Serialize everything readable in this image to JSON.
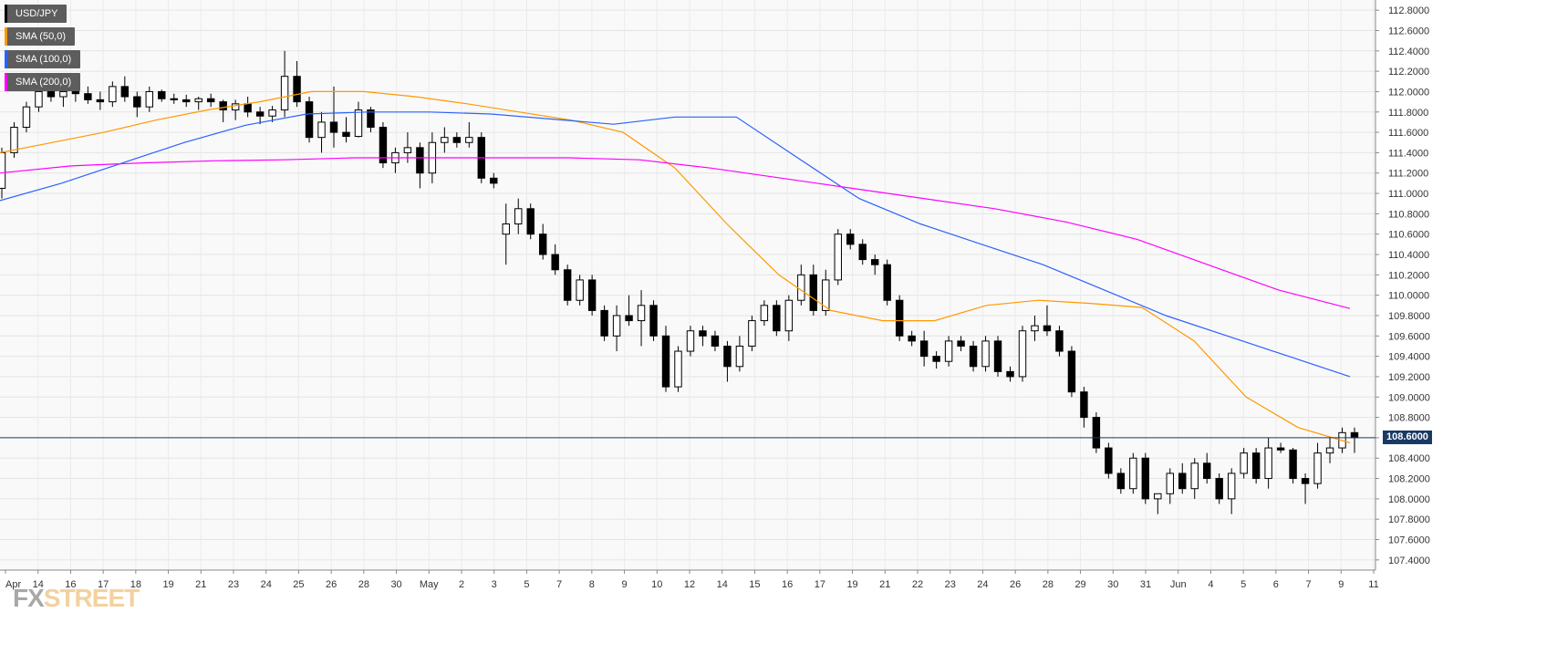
{
  "legend": [
    {
      "label": "USD/JPY",
      "color": "#000000"
    },
    {
      "label": "SMA (50,0)",
      "color": "#ff9900"
    },
    {
      "label": "SMA (100,0)",
      "color": "#2962ff"
    },
    {
      "label": "SMA (200,0)",
      "color": "#ff00ff"
    }
  ],
  "watermark": {
    "left": "FX",
    "right": "STREET"
  },
  "current_price": "108.6000",
  "chart_data": {
    "type": "candlestick",
    "symbol": "USD/JPY",
    "ylim": [
      107.3,
      112.9
    ],
    "y_ticks": [
      "112.8000",
      "112.6000",
      "112.4000",
      "112.2000",
      "112.0000",
      "111.8000",
      "111.6000",
      "111.4000",
      "111.2000",
      "111.0000",
      "110.8000",
      "110.6000",
      "110.4000",
      "110.2000",
      "110.0000",
      "109.8000",
      "109.6000",
      "109.4000",
      "109.2000",
      "109.0000",
      "108.8000",
      "108.6000",
      "108.4000",
      "108.2000",
      "108.0000",
      "107.8000",
      "107.6000",
      "107.4000"
    ],
    "x_ticks": [
      "Apr",
      "14",
      "16",
      "17",
      "18",
      "19",
      "21",
      "23",
      "24",
      "25",
      "26",
      "28",
      "30",
      "May",
      "2",
      "3",
      "5",
      "7",
      "8",
      "9",
      "10",
      "12",
      "14",
      "15",
      "16",
      "17",
      "19",
      "21",
      "22",
      "23",
      "24",
      "26",
      "28",
      "29",
      "30",
      "31",
      "Jun",
      "4",
      "5",
      "6",
      "7",
      "9",
      "11"
    ],
    "current_price": 108.6,
    "series": [
      {
        "name": "SMA (50,0)",
        "color": "#ff9900",
        "values": [
          111.4,
          111.5,
          111.6,
          111.72,
          111.82,
          111.9,
          112.0,
          112.0,
          111.95,
          111.88,
          111.8,
          111.72,
          111.6,
          111.25,
          110.7,
          110.2,
          109.85,
          109.75,
          109.75,
          109.9,
          109.95,
          109.92,
          109.88,
          109.55,
          109.0,
          108.7,
          108.55
        ]
      },
      {
        "name": "SMA (100,0)",
        "color": "#2962ff",
        "values": [
          110.93,
          111.1,
          111.3,
          111.5,
          111.67,
          111.78,
          111.8,
          111.8,
          111.78,
          111.73,
          111.68,
          111.75,
          111.75,
          111.35,
          110.95,
          110.7,
          110.5,
          110.3,
          110.05,
          109.8,
          109.6,
          109.4,
          109.2
        ]
      },
      {
        "name": "SMA (200,0)",
        "color": "#ff00ff",
        "values": [
          111.2,
          111.27,
          111.3,
          111.32,
          111.33,
          111.35,
          111.35,
          111.35,
          111.35,
          111.33,
          111.25,
          111.15,
          111.05,
          110.95,
          110.85,
          110.72,
          110.55,
          110.3,
          110.05,
          109.87
        ]
      }
    ],
    "candles": [
      [
        111.05,
        111.45,
        110.95,
        111.4
      ],
      [
        111.4,
        111.7,
        111.35,
        111.65
      ],
      [
        111.65,
        111.9,
        111.6,
        111.85
      ],
      [
        111.85,
        112.1,
        111.8,
        112.0
      ],
      [
        112.0,
        112.12,
        111.9,
        111.95
      ],
      [
        111.95,
        112.05,
        111.85,
        112.0
      ],
      [
        112.0,
        112.1,
        111.9,
        111.98
      ],
      [
        111.98,
        112.05,
        111.88,
        111.92
      ],
      [
        111.92,
        112.0,
        111.82,
        111.9
      ],
      [
        111.9,
        112.1,
        111.85,
        112.05
      ],
      [
        112.05,
        112.15,
        111.9,
        111.95
      ],
      [
        111.95,
        112.0,
        111.75,
        111.85
      ],
      [
        111.85,
        112.05,
        111.8,
        112.0
      ],
      [
        112.0,
        112.02,
        111.9,
        111.93
      ],
      [
        111.93,
        111.98,
        111.88,
        111.92
      ],
      [
        111.92,
        111.97,
        111.85,
        111.9
      ],
      [
        111.9,
        111.95,
        111.82,
        111.93
      ],
      [
        111.93,
        111.98,
        111.85,
        111.9
      ],
      [
        111.9,
        111.92,
        111.7,
        111.82
      ],
      [
        111.82,
        111.92,
        111.72,
        111.88
      ],
      [
        111.88,
        111.95,
        111.75,
        111.8
      ],
      [
        111.8,
        111.85,
        111.68,
        111.76
      ],
      [
        111.76,
        111.86,
        111.7,
        111.82
      ],
      [
        111.82,
        112.4,
        111.75,
        112.15
      ],
      [
        112.15,
        112.3,
        111.85,
        111.9
      ],
      [
        111.9,
        111.95,
        111.5,
        111.55
      ],
      [
        111.55,
        111.8,
        111.4,
        111.7
      ],
      [
        111.7,
        112.05,
        111.45,
        111.6
      ],
      [
        111.6,
        111.75,
        111.5,
        111.56
      ],
      [
        111.56,
        111.9,
        111.55,
        111.82
      ],
      [
        111.82,
        111.85,
        111.6,
        111.65
      ],
      [
        111.65,
        111.7,
        111.25,
        111.3
      ],
      [
        111.3,
        111.45,
        111.2,
        111.4
      ],
      [
        111.4,
        111.6,
        111.3,
        111.45
      ],
      [
        111.45,
        111.5,
        111.05,
        111.2
      ],
      [
        111.2,
        111.6,
        111.1,
        111.5
      ],
      [
        111.5,
        111.65,
        111.4,
        111.55
      ],
      [
        111.55,
        111.6,
        111.45,
        111.5
      ],
      [
        111.5,
        111.7,
        111.45,
        111.55
      ],
      [
        111.55,
        111.6,
        111.1,
        111.15
      ],
      [
        111.15,
        111.2,
        111.05,
        111.1
      ],
      [
        110.6,
        110.9,
        110.3,
        110.7
      ],
      [
        110.7,
        110.95,
        110.6,
        110.85
      ],
      [
        110.85,
        110.9,
        110.55,
        110.6
      ],
      [
        110.6,
        110.7,
        110.35,
        110.4
      ],
      [
        110.4,
        110.5,
        110.2,
        110.25
      ],
      [
        110.25,
        110.3,
        109.9,
        109.95
      ],
      [
        109.95,
        110.2,
        109.9,
        110.15
      ],
      [
        110.15,
        110.2,
        109.8,
        109.85
      ],
      [
        109.85,
        109.9,
        109.55,
        109.6
      ],
      [
        109.6,
        109.9,
        109.45,
        109.8
      ],
      [
        109.8,
        110.0,
        109.7,
        109.75
      ],
      [
        109.75,
        110.05,
        109.5,
        109.9
      ],
      [
        109.9,
        109.95,
        109.55,
        109.6
      ],
      [
        109.6,
        109.7,
        109.05,
        109.1
      ],
      [
        109.1,
        109.5,
        109.05,
        109.45
      ],
      [
        109.45,
        109.7,
        109.4,
        109.65
      ],
      [
        109.65,
        109.7,
        109.5,
        109.6
      ],
      [
        109.6,
        109.65,
        109.45,
        109.5
      ],
      [
        109.5,
        109.55,
        109.15,
        109.3
      ],
      [
        109.3,
        109.6,
        109.25,
        109.5
      ],
      [
        109.5,
        109.8,
        109.45,
        109.75
      ],
      [
        109.75,
        109.95,
        109.7,
        109.9
      ],
      [
        109.9,
        109.95,
        109.6,
        109.65
      ],
      [
        109.65,
        110.0,
        109.55,
        109.95
      ],
      [
        109.95,
        110.3,
        109.9,
        110.2
      ],
      [
        110.2,
        110.3,
        109.8,
        109.85
      ],
      [
        109.85,
        110.25,
        109.8,
        110.15
      ],
      [
        110.15,
        110.65,
        110.1,
        110.6
      ],
      [
        110.6,
        110.65,
        110.45,
        110.5
      ],
      [
        110.5,
        110.55,
        110.3,
        110.35
      ],
      [
        110.35,
        110.4,
        110.2,
        110.3
      ],
      [
        110.3,
        110.35,
        109.9,
        109.95
      ],
      [
        109.95,
        110.0,
        109.55,
        109.6
      ],
      [
        109.6,
        109.65,
        109.5,
        109.55
      ],
      [
        109.55,
        109.65,
        109.3,
        109.4
      ],
      [
        109.4,
        109.45,
        109.28,
        109.35
      ],
      [
        109.35,
        109.6,
        109.3,
        109.55
      ],
      [
        109.55,
        109.6,
        109.45,
        109.5
      ],
      [
        109.5,
        109.55,
        109.25,
        109.3
      ],
      [
        109.3,
        109.6,
        109.25,
        109.55
      ],
      [
        109.55,
        109.6,
        109.2,
        109.25
      ],
      [
        109.25,
        109.3,
        109.15,
        109.2
      ],
      [
        109.2,
        109.7,
        109.15,
        109.65
      ],
      [
        109.65,
        109.8,
        109.55,
        109.7
      ],
      [
        109.7,
        109.9,
        109.6,
        109.65
      ],
      [
        109.65,
        109.7,
        109.4,
        109.45
      ],
      [
        109.45,
        109.5,
        109.0,
        109.05
      ],
      [
        109.05,
        109.1,
        108.7,
        108.8
      ],
      [
        108.8,
        108.85,
        108.45,
        108.5
      ],
      [
        108.5,
        108.55,
        108.2,
        108.25
      ],
      [
        108.25,
        108.3,
        108.05,
        108.1
      ],
      [
        108.1,
        108.45,
        108.05,
        108.4
      ],
      [
        108.4,
        108.45,
        107.95,
        108.0
      ],
      [
        108.0,
        108.05,
        107.85,
        108.05
      ],
      [
        108.05,
        108.3,
        107.95,
        108.25
      ],
      [
        108.25,
        108.35,
        108.05,
        108.1
      ],
      [
        108.1,
        108.4,
        108.0,
        108.35
      ],
      [
        108.35,
        108.45,
        108.15,
        108.2
      ],
      [
        108.2,
        108.25,
        107.95,
        108.0
      ],
      [
        108.0,
        108.3,
        107.85,
        108.25
      ],
      [
        108.25,
        108.5,
        108.2,
        108.45
      ],
      [
        108.45,
        108.5,
        108.15,
        108.2
      ],
      [
        108.2,
        108.6,
        108.1,
        108.5
      ],
      [
        108.5,
        108.55,
        108.45,
        108.48
      ],
      [
        108.48,
        108.5,
        108.15,
        108.2
      ],
      [
        108.2,
        108.25,
        107.95,
        108.15
      ],
      [
        108.15,
        108.55,
        108.1,
        108.45
      ],
      [
        108.45,
        108.6,
        108.35,
        108.5
      ],
      [
        108.5,
        108.7,
        108.45,
        108.65
      ],
      [
        108.65,
        108.7,
        108.45,
        108.6
      ]
    ]
  }
}
